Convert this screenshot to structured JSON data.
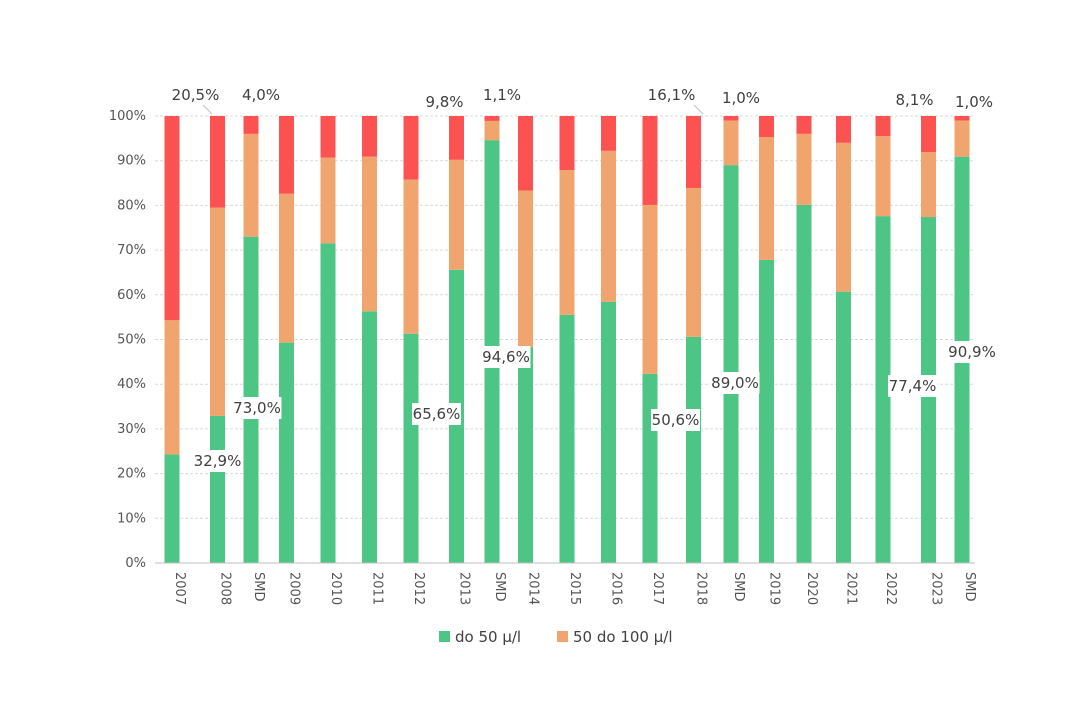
{
  "chart_data": {
    "type": "bar",
    "stacked": true,
    "percent": true,
    "categories": [
      "2007",
      "2008",
      "SMD",
      "2009",
      "2010",
      "2011",
      "2012",
      "2013",
      "SMD",
      "2014",
      "2015",
      "2016",
      "2017",
      "2018",
      "SMD",
      "2019",
      "2020",
      "2021",
      "2022",
      "2023",
      "SMD"
    ],
    "series": [
      {
        "name": "do 50 µ/l",
        "color": "#4dc584",
        "values": [
          24.3,
          32.9,
          73.0,
          49.3,
          71.5,
          56.3,
          51.3,
          65.6,
          94.6,
          48.3,
          55.5,
          58.4,
          42.3,
          50.6,
          89.0,
          67.8,
          80.1,
          60.7,
          77.6,
          77.4,
          90.9
        ]
      },
      {
        "name": "50 do 100 µ/l",
        "color": "#f0a46e",
        "values": [
          30.0,
          46.6,
          23.0,
          33.3,
          19.2,
          34.6,
          34.5,
          24.6,
          4.3,
          35.0,
          32.4,
          33.8,
          37.8,
          33.3,
          10.0,
          27.5,
          15.9,
          33.3,
          17.9,
          14.5,
          8.1
        ]
      },
      {
        "color": "#fd5252",
        "values": [
          45.7,
          20.5,
          4.0,
          17.4,
          9.3,
          9.1,
          14.2,
          9.8,
          1.1,
          16.7,
          12.1,
          7.8,
          19.9,
          16.1,
          1.0,
          4.7,
          4.0,
          6.0,
          4.5,
          8.1,
          1.0
        ]
      }
    ],
    "ylim": [
      0,
      100
    ],
    "yticks": [
      "0%",
      "10%",
      "20%",
      "30%",
      "40%",
      "50%",
      "60%",
      "70%",
      "80%",
      "90%",
      "100%"
    ],
    "grid": true,
    "legend_position": "bottom",
    "data_labels": [
      {
        "text": "20,5%",
        "category_index": 1,
        "series": 2
      },
      {
        "text": "4,0%",
        "category_index": 2,
        "series": 2
      },
      {
        "text": "9,8%",
        "category_index": 7,
        "series": 2
      },
      {
        "text": "1,1%",
        "category_index": 8,
        "series": 2
      },
      {
        "text": "16,1%",
        "category_index": 13,
        "series": 2
      },
      {
        "text": "1,0%",
        "category_index": 14,
        "series": 2
      },
      {
        "text": "8,1%",
        "category_index": 19,
        "series": 2
      },
      {
        "text": "1,0%",
        "category_index": 20,
        "series": 2
      },
      {
        "text": "32,9%",
        "category_index": 1,
        "series": 0
      },
      {
        "text": "73,0%",
        "category_index": 2,
        "series": 0
      },
      {
        "text": "65,6%",
        "category_index": 7,
        "series": 0
      },
      {
        "text": "94,6%",
        "category_index": 8,
        "series": 0
      },
      {
        "text": "50,6%",
        "category_index": 13,
        "series": 0
      },
      {
        "text": "89,0%",
        "category_index": 14,
        "series": 0
      },
      {
        "text": "77,4%",
        "category_index": 19,
        "series": 0
      },
      {
        "text": "90,9%",
        "category_index": 20,
        "series": 0
      }
    ]
  }
}
